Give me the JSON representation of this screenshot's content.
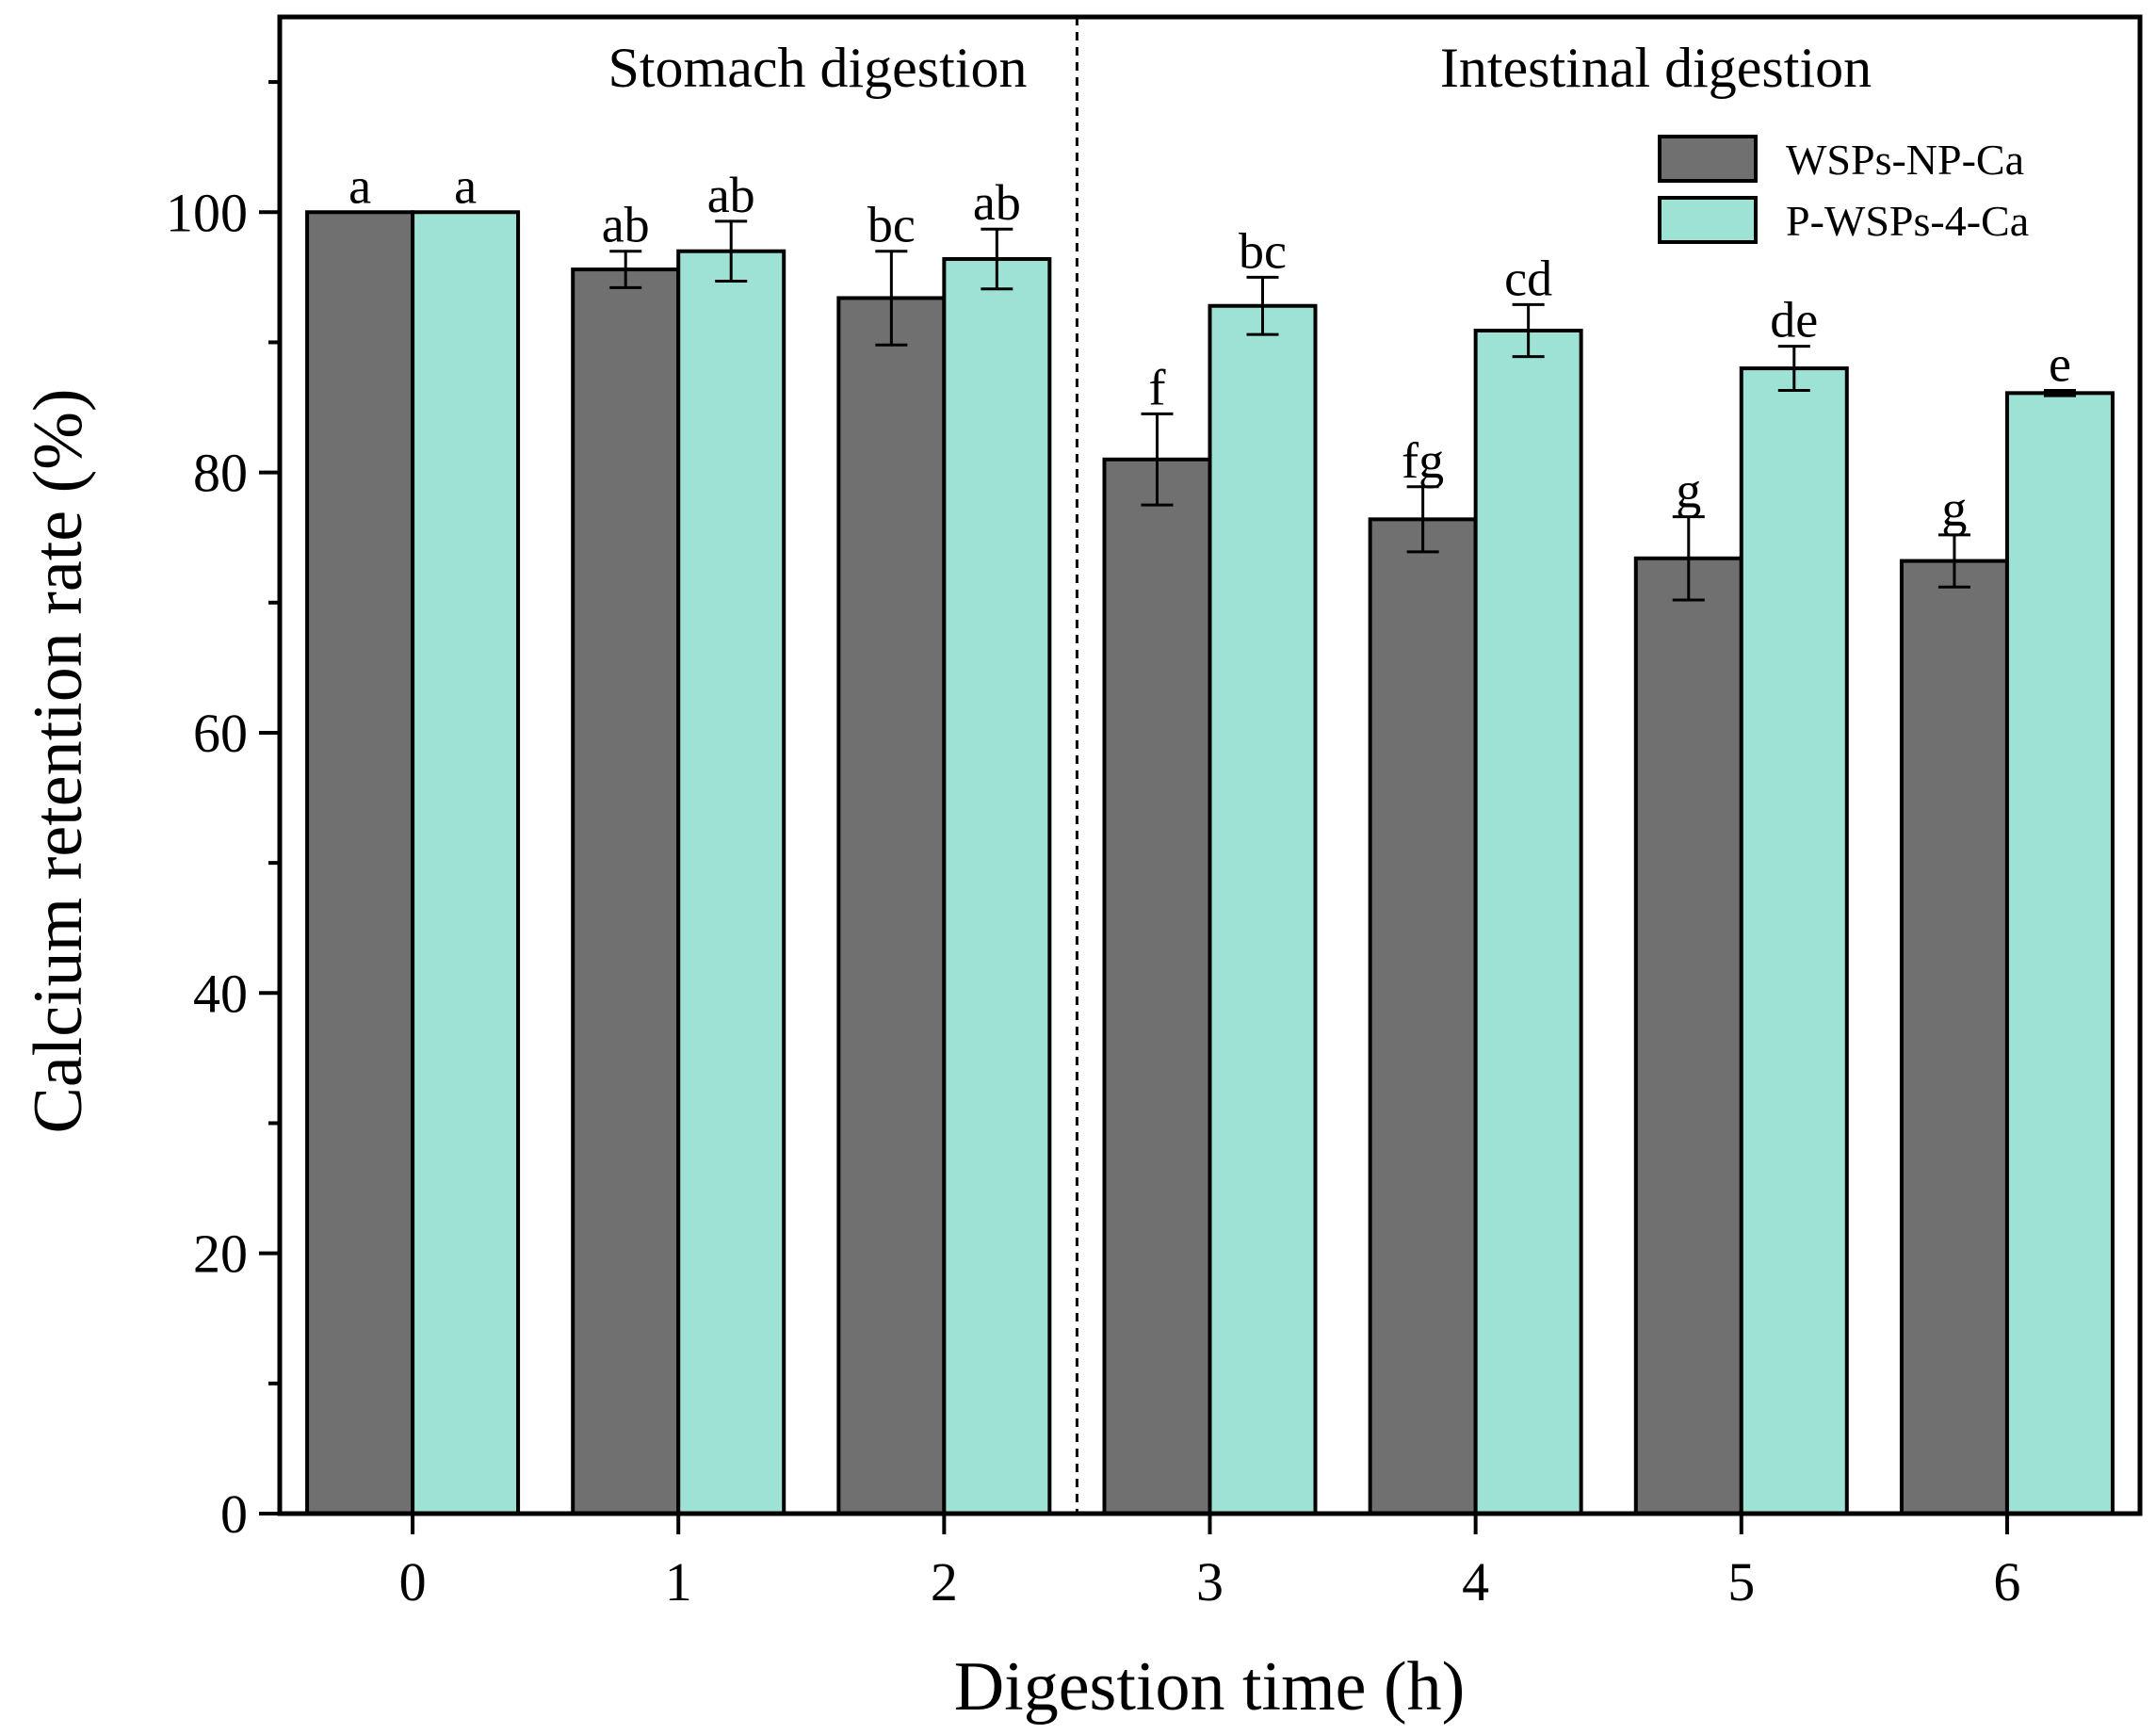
{
  "chart_data": {
    "type": "bar",
    "xlabel": "Digestion time (h)",
    "ylabel": "Calcium retention rate (%)",
    "categories": [
      "0",
      "1",
      "2",
      "3",
      "4",
      "5",
      "6"
    ],
    "ylim": [
      0,
      115
    ],
    "yticks": [
      "0",
      "20",
      "40",
      "60",
      "80",
      "100"
    ],
    "y_minor_tick_step": 10,
    "divider_between_categories": [
      "2",
      "3"
    ],
    "divider_style": "dashed",
    "sections": [
      {
        "label": "Stomach digestion",
        "categories": [
          "0",
          "1",
          "2"
        ]
      },
      {
        "label": "Intestinal digestion",
        "categories": [
          "3",
          "4",
          "5",
          "6"
        ]
      }
    ],
    "legend_position": "top-right",
    "grid": false,
    "series": [
      {
        "name": "WSPs-NP-Ca",
        "color": "#707070",
        "values": [
          100,
          95.6,
          93.4,
          81.0,
          76.4,
          73.4,
          73.2
        ],
        "errors": [
          0,
          1.4,
          3.6,
          3.5,
          2.5,
          3.2,
          2.0
        ],
        "significance": [
          "a",
          "ab",
          "bc",
          "f",
          "fg",
          "g",
          "g"
        ]
      },
      {
        "name": "P-WSPs-4-Ca",
        "color": "#9de2d4",
        "values": [
          100,
          97.0,
          96.4,
          92.8,
          90.9,
          88.0,
          86.1
        ],
        "errors": [
          0,
          2.3,
          2.3,
          2.2,
          2.0,
          1.7,
          0.2
        ],
        "significance": [
          "a",
          "ab",
          "ab",
          "bc",
          "cd",
          "de",
          "e"
        ]
      }
    ]
  }
}
